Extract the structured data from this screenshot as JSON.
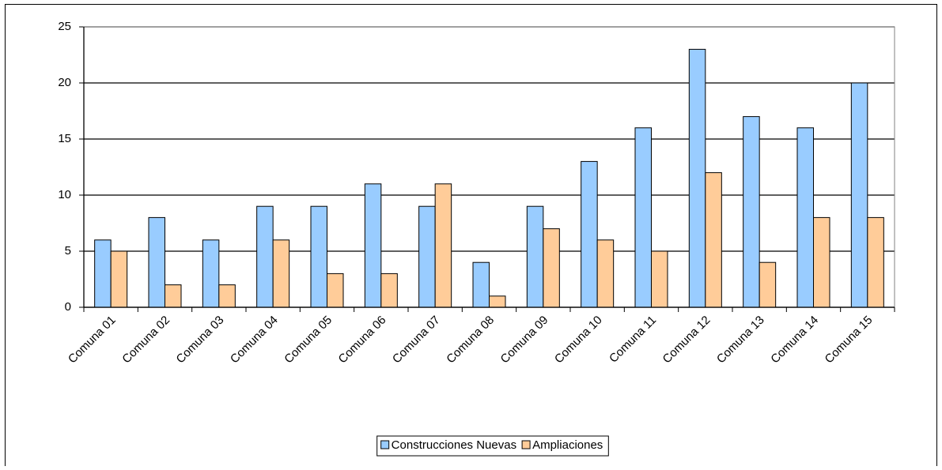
{
  "chart_data": {
    "type": "bar",
    "categories": [
      "Comuna 01",
      "Comuna 02",
      "Comuna 03",
      "Comuna 04",
      "Comuna 05",
      "Comuna 06",
      "Comuna 07",
      "Comuna 08",
      "Comuna 09",
      "Comuna 10",
      "Comuna 11",
      "Comuna 12",
      "Comuna 13",
      "Comuna 14",
      "Comuna 15"
    ],
    "series": [
      {
        "name": "Construcciones Nuevas",
        "color": "#99ccff",
        "values": [
          6,
          8,
          6,
          9,
          9,
          11,
          9,
          4,
          9,
          13,
          16,
          23,
          17,
          16,
          20
        ]
      },
      {
        "name": "Ampliaciones",
        "color": "#ffcc99",
        "values": [
          5,
          2,
          2,
          6,
          3,
          3,
          11,
          1,
          7,
          6,
          5,
          12,
          4,
          8,
          8
        ]
      }
    ],
    "ylim": [
      0,
      25
    ],
    "yticks": [
      0,
      5,
      10,
      15,
      20,
      25
    ],
    "grid": true,
    "legend": "bottom"
  }
}
